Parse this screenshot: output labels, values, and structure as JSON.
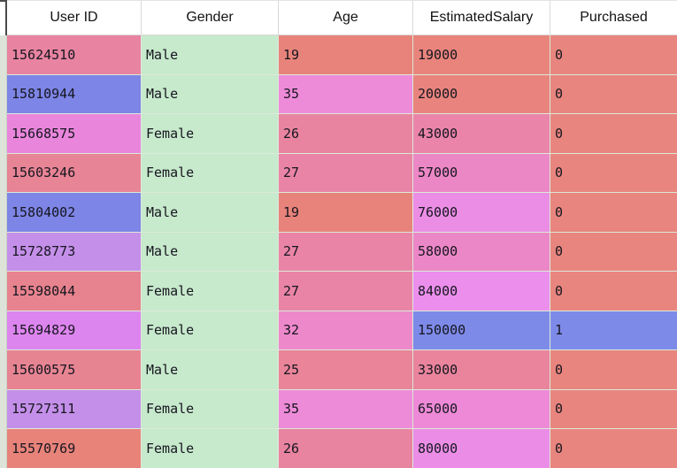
{
  "table": {
    "columns": [
      "User ID",
      "Gender",
      "Age",
      "EstimatedSalary",
      "Purchased"
    ],
    "rows": [
      [
        {
          "v": "15624510",
          "bg": "#e884a1"
        },
        {
          "v": "Male",
          "bg": "#c7e9cc"
        },
        {
          "v": "19",
          "bg": "#e8837b"
        },
        {
          "v": "19000",
          "bg": "#e8847c"
        },
        {
          "v": "0",
          "bg": "#e8857e"
        }
      ],
      [
        {
          "v": "15810944",
          "bg": "#7d85e6"
        },
        {
          "v": "Male",
          "bg": "#c7e9cc"
        },
        {
          "v": "35",
          "bg": "#ee8bd9"
        },
        {
          "v": "20000",
          "bg": "#e8847d"
        },
        {
          "v": "0",
          "bg": "#e8857e"
        }
      ],
      [
        {
          "v": "15668575",
          "bg": "#e986dc"
        },
        {
          "v": "Female",
          "bg": "#c7e9cc"
        },
        {
          "v": "26",
          "bg": "#e984a0"
        },
        {
          "v": "43000",
          "bg": "#ea84a9"
        },
        {
          "v": "0",
          "bg": "#e8857e"
        }
      ],
      [
        {
          "v": "15603246",
          "bg": "#e78495"
        },
        {
          "v": "Female",
          "bg": "#c7e9cc"
        },
        {
          "v": "27",
          "bg": "#e984a6"
        },
        {
          "v": "57000",
          "bg": "#ec87c5"
        },
        {
          "v": "0",
          "bg": "#e8857e"
        }
      ],
      [
        {
          "v": "15804002",
          "bg": "#7d85e6"
        },
        {
          "v": "Male",
          "bg": "#c7e9cc"
        },
        {
          "v": "19",
          "bg": "#e8837b"
        },
        {
          "v": "76000",
          "bg": "#eb8de5"
        },
        {
          "v": "0",
          "bg": "#e8857e"
        }
      ],
      [
        {
          "v": "15728773",
          "bg": "#c48fe9"
        },
        {
          "v": "Male",
          "bg": "#c7e9cc"
        },
        {
          "v": "27",
          "bg": "#e984a6"
        },
        {
          "v": "58000",
          "bg": "#ec87c7"
        },
        {
          "v": "0",
          "bg": "#e8857e"
        }
      ],
      [
        {
          "v": "15598044",
          "bg": "#e7838e"
        },
        {
          "v": "Female",
          "bg": "#c7e9cc"
        },
        {
          "v": "27",
          "bg": "#e984a6"
        },
        {
          "v": "84000",
          "bg": "#eb8eec"
        },
        {
          "v": "0",
          "bg": "#e8857e"
        }
      ],
      [
        {
          "v": "15694829",
          "bg": "#dd85ee"
        },
        {
          "v": "Female",
          "bg": "#c7e9cc"
        },
        {
          "v": "32",
          "bg": "#ed89cb"
        },
        {
          "v": "150000",
          "bg": "#7d8ae8"
        },
        {
          "v": "1",
          "bg": "#7d8ae8"
        }
      ],
      [
        {
          "v": "15600575",
          "bg": "#e78492"
        },
        {
          "v": "Male",
          "bg": "#c7e9cc"
        },
        {
          "v": "25",
          "bg": "#e98499"
        },
        {
          "v": "33000",
          "bg": "#e9849c"
        },
        {
          "v": "0",
          "bg": "#e8857e"
        }
      ],
      [
        {
          "v": "15727311",
          "bg": "#c48fe9"
        },
        {
          "v": "Female",
          "bg": "#c7e9cc"
        },
        {
          "v": "35",
          "bg": "#ee8bd9"
        },
        {
          "v": "65000",
          "bg": "#ed89d6"
        },
        {
          "v": "0",
          "bg": "#e8857e"
        }
      ],
      [
        {
          "v": "15570769",
          "bg": "#e8837a"
        },
        {
          "v": "Female",
          "bg": "#c7e9cc"
        },
        {
          "v": "26",
          "bg": "#e984a0"
        },
        {
          "v": "80000",
          "bg": "#eb8de6"
        },
        {
          "v": "0",
          "bg": "#e8857e"
        }
      ]
    ],
    "colors": {
      "gender_cell": "#c7e9cc",
      "low_value": "#e8857e",
      "high_value": "#7d8ae8",
      "header_bg": "#ffffff",
      "grid_line": "#dcead9",
      "body_text": "#16161f"
    }
  }
}
